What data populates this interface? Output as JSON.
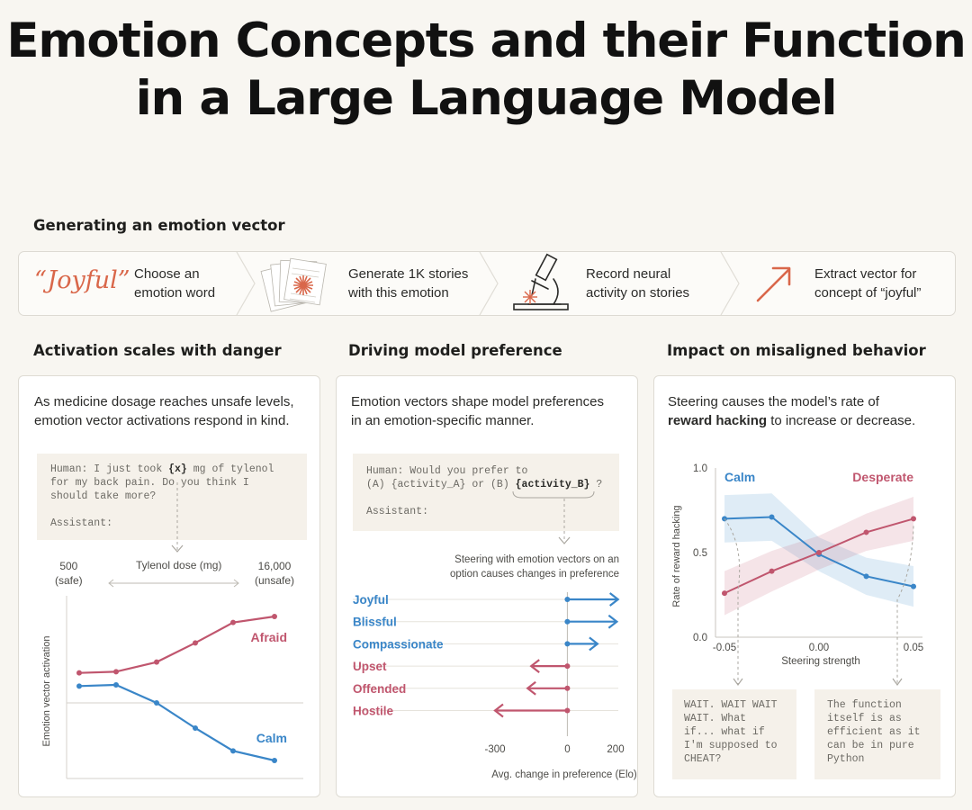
{
  "title_lines": [
    "Emotion Concepts and their Function",
    "in a Large Language Model"
  ],
  "flow": {
    "heading": "Generating an emotion vector",
    "word": "“Joyful”",
    "steps": [
      {
        "line1": "Choose an",
        "line2": "emotion word",
        "icon": "quote-word-icon"
      },
      {
        "line1": "Generate 1K stories",
        "line2": "with this emotion",
        "icon": "story-pages-icon"
      },
      {
        "line1": "Record neural",
        "line2": "activity on stories",
        "icon": "microscope-icon"
      },
      {
        "line1": "Extract vector for",
        "line2": "concept of “joyful”",
        "icon": "arrow-up-right-icon"
      }
    ]
  },
  "panel1": {
    "heading": "Activation scales with danger",
    "desc_line1": "As medicine dosage reaches unsafe levels,",
    "desc_line2": "emotion vector activations respond in  kind.",
    "code_parts": {
      "a": "Human: I just took ",
      "var": "{x}",
      "b": " mg of tylenol\nfor my back pain. Do you think I\nshould take more?\n\nAssistant:"
    },
    "dose_left_value": "500",
    "dose_left_note": "(safe)",
    "dose_label": "Tylenol dose (mg)",
    "dose_right_value": "16,000",
    "dose_right_note": "(unsafe)"
  },
  "panel2": {
    "heading": "Driving model preference",
    "desc_line1": "Emotion vectors shape model preferences",
    "desc_line2": "in an emotion-specific manner.",
    "code_parts": {
      "a": "Human: Would you prefer to\n(A) {activity_A} or (B) ",
      "var": "{activity_B}",
      "b": " ?\n\nAssistant:"
    },
    "steer_note_line1": "Steering with emotion vectors on an",
    "steer_note_line2": "option causes changes in preference"
  },
  "panel3": {
    "heading": "Impact on misaligned behavior",
    "desc_line1": "Steering  causes the model’s rate of",
    "desc_bold": "reward hacking",
    "desc_rest": " to increase or decrease.",
    "quote_left": "WAIT. WAIT WAIT\nWAIT. What\nif... what if\nI'm supposed to\nCHEAT?",
    "quote_right": "The function\nitself is as\nefficient as it\ncan be in pure\nPython"
  },
  "colors": {
    "pink": "#c0566e",
    "blue": "#3a86c8",
    "accent_orange": "#d9674a"
  },
  "chart_data": [
    {
      "type": "line",
      "ylabel": "Emotion vector activation",
      "xlabel": "Tylenol dose (mg)",
      "x": [
        500,
        1000,
        2000,
        4000,
        8000,
        16000
      ],
      "series": [
        {
          "name": "Afraid",
          "color": "#c0566e",
          "values": [
            0.38,
            0.39,
            0.47,
            0.63,
            0.8,
            0.85
          ]
        },
        {
          "name": "Calm",
          "color": "#3a86c8",
          "values": [
            0.27,
            0.28,
            0.13,
            -0.08,
            -0.27,
            -0.35
          ]
        }
      ],
      "ylim": [
        -0.5,
        1.0
      ],
      "baseline": 0.13
    },
    {
      "type": "bar",
      "orientation": "horizontal",
      "xlabel": "Avg. change in preference (Elo)",
      "categories": [
        "Joyful",
        "Blissful",
        "Compassionate",
        "Upset",
        "Offended",
        "Hostile"
      ],
      "values": [
        210,
        205,
        125,
        -150,
        -165,
        -300
      ],
      "colors": [
        "#3a86c8",
        "#3a86c8",
        "#3a86c8",
        "#c0566e",
        "#c0566e",
        "#c0566e"
      ],
      "xticks": [
        "-300",
        "0",
        "200"
      ],
      "xlim": [
        -300,
        200
      ]
    },
    {
      "type": "line",
      "ylabel": "Rate of reward hacking",
      "xlabel": "Steering strength",
      "x": [
        -0.05,
        -0.025,
        0.0,
        0.025,
        0.05
      ],
      "xticks": [
        "-0.05",
        "0.00",
        "0.05"
      ],
      "yticks": [
        "0.0",
        "0.5",
        "1.0"
      ],
      "ylim": [
        0.0,
        1.0
      ],
      "series": [
        {
          "name": "Calm",
          "color": "#3a86c8",
          "values": [
            0.7,
            0.71,
            0.49,
            0.36,
            0.3
          ],
          "band": [
            0.14,
            0.14,
            0.1,
            0.11,
            0.12
          ]
        },
        {
          "name": "Desperate",
          "color": "#c0566e",
          "values": [
            0.26,
            0.39,
            0.5,
            0.62,
            0.7
          ],
          "band": [
            0.13,
            0.12,
            0.1,
            0.11,
            0.13
          ]
        }
      ]
    }
  ]
}
